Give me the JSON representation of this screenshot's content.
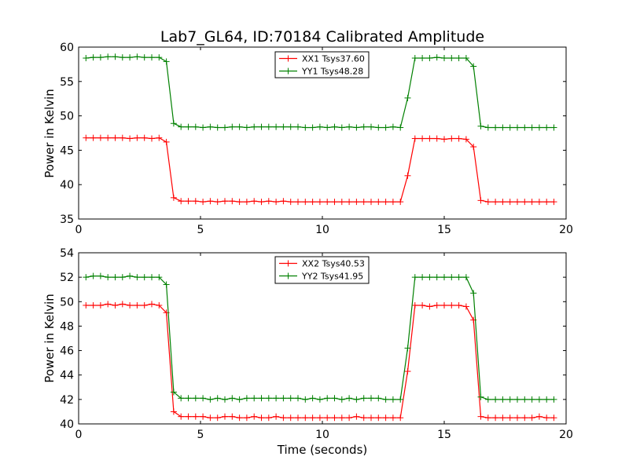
{
  "title": "Lab7_GL64, ID:70184 Calibrated Amplitude",
  "xlabel": "Time (seconds)",
  "colors": {
    "red": "#ff0000",
    "green": "#008000"
  },
  "chart_data": [
    {
      "type": "line",
      "ylabel": "Power in Kelvin",
      "xlim": [
        0,
        20
      ],
      "ylim": [
        35,
        60
      ],
      "xticks": [
        "0",
        "5",
        "10",
        "15",
        "20"
      ],
      "yticks": [
        "35",
        "40",
        "45",
        "50",
        "55",
        "60"
      ],
      "xtick_values": [
        0,
        5,
        10,
        15,
        20
      ],
      "ytick_values": [
        35,
        40,
        45,
        50,
        55,
        60
      ],
      "x": [
        0.3,
        0.6,
        0.9,
        1.2,
        1.5,
        1.8,
        2.1,
        2.4,
        2.7,
        3.0,
        3.3,
        3.6,
        3.9,
        4.2,
        4.5,
        4.8,
        5.1,
        5.4,
        5.7,
        6.0,
        6.3,
        6.6,
        6.9,
        7.2,
        7.5,
        7.8,
        8.1,
        8.4,
        8.7,
        9.0,
        9.3,
        9.6,
        9.9,
        10.2,
        10.5,
        10.8,
        11.1,
        11.4,
        11.7,
        12.0,
        12.3,
        12.6,
        12.9,
        13.2,
        13.5,
        13.8,
        14.1,
        14.4,
        14.7,
        15.0,
        15.3,
        15.6,
        15.9,
        16.2,
        16.5,
        16.8,
        17.1,
        17.4,
        17.7,
        18.0,
        18.3,
        18.6,
        18.9,
        19.2,
        19.5
      ],
      "series": [
        {
          "name": "XX1 Tsys37.60",
          "color": "#ff0000",
          "values": [
            46.8,
            46.8,
            46.8,
            46.8,
            46.8,
            46.8,
            46.7,
            46.8,
            46.8,
            46.7,
            46.8,
            46.2,
            38.1,
            37.6,
            37.6,
            37.6,
            37.5,
            37.6,
            37.5,
            37.6,
            37.6,
            37.5,
            37.5,
            37.6,
            37.5,
            37.6,
            37.5,
            37.6,
            37.5,
            37.5,
            37.5,
            37.5,
            37.5,
            37.5,
            37.5,
            37.5,
            37.5,
            37.5,
            37.5,
            37.5,
            37.5,
            37.5,
            37.5,
            37.5,
            41.3,
            46.7,
            46.7,
            46.7,
            46.7,
            46.6,
            46.7,
            46.7,
            46.6,
            45.5,
            37.7,
            37.5,
            37.5,
            37.5,
            37.5,
            37.5,
            37.5,
            37.5,
            37.5,
            37.5,
            37.5
          ]
        },
        {
          "name": "YY1 Tsys48.28",
          "color": "#008000",
          "values": [
            58.4,
            58.5,
            58.5,
            58.6,
            58.6,
            58.5,
            58.5,
            58.6,
            58.5,
            58.5,
            58.5,
            57.9,
            48.9,
            48.4,
            48.4,
            48.4,
            48.3,
            48.4,
            48.3,
            48.3,
            48.4,
            48.4,
            48.3,
            48.4,
            48.4,
            48.4,
            48.4,
            48.4,
            48.4,
            48.4,
            48.3,
            48.3,
            48.4,
            48.3,
            48.4,
            48.3,
            48.4,
            48.3,
            48.4,
            48.4,
            48.3,
            48.3,
            48.4,
            48.3,
            52.6,
            58.4,
            58.4,
            58.4,
            58.5,
            58.4,
            58.4,
            58.4,
            58.4,
            57.2,
            48.5,
            48.3,
            48.3,
            48.3,
            48.3,
            48.3,
            48.3,
            48.3,
            48.3,
            48.3,
            48.3
          ]
        }
      ]
    },
    {
      "type": "line",
      "ylabel": "Power in Kelvin",
      "xlim": [
        0,
        20
      ],
      "ylim": [
        40,
        54
      ],
      "xticks": [
        "0",
        "5",
        "10",
        "15",
        "20"
      ],
      "yticks": [
        "40",
        "42",
        "44",
        "46",
        "48",
        "50",
        "52",
        "54"
      ],
      "xtick_values": [
        0,
        5,
        10,
        15,
        20
      ],
      "ytick_values": [
        40,
        42,
        44,
        46,
        48,
        50,
        52,
        54
      ],
      "x": [
        0.3,
        0.6,
        0.9,
        1.2,
        1.5,
        1.8,
        2.1,
        2.4,
        2.7,
        3.0,
        3.3,
        3.6,
        3.9,
        4.2,
        4.5,
        4.8,
        5.1,
        5.4,
        5.7,
        6.0,
        6.3,
        6.6,
        6.9,
        7.2,
        7.5,
        7.8,
        8.1,
        8.4,
        8.7,
        9.0,
        9.3,
        9.6,
        9.9,
        10.2,
        10.5,
        10.8,
        11.1,
        11.4,
        11.7,
        12.0,
        12.3,
        12.6,
        12.9,
        13.2,
        13.5,
        13.8,
        14.1,
        14.4,
        14.7,
        15.0,
        15.3,
        15.6,
        15.9,
        16.2,
        16.5,
        16.8,
        17.1,
        17.4,
        17.7,
        18.0,
        18.3,
        18.6,
        18.9,
        19.2,
        19.5
      ],
      "series": [
        {
          "name": "XX2 Tsys40.53",
          "color": "#ff0000",
          "values": [
            49.7,
            49.7,
            49.7,
            49.8,
            49.7,
            49.8,
            49.7,
            49.7,
            49.7,
            49.8,
            49.7,
            49.1,
            41.0,
            40.6,
            40.6,
            40.6,
            40.6,
            40.5,
            40.5,
            40.6,
            40.6,
            40.5,
            40.5,
            40.6,
            40.5,
            40.5,
            40.6,
            40.5,
            40.5,
            40.5,
            40.5,
            40.5,
            40.5,
            40.5,
            40.5,
            40.5,
            40.5,
            40.6,
            40.5,
            40.5,
            40.5,
            40.5,
            40.5,
            40.5,
            44.3,
            49.7,
            49.7,
            49.6,
            49.7,
            49.7,
            49.7,
            49.7,
            49.6,
            48.5,
            40.6,
            40.5,
            40.5,
            40.5,
            40.5,
            40.5,
            40.5,
            40.5,
            40.6,
            40.5,
            40.5
          ]
        },
        {
          "name": "YY2 Tsys41.95",
          "color": "#008000",
          "values": [
            52.0,
            52.1,
            52.1,
            52.0,
            52.0,
            52.0,
            52.1,
            52.0,
            52.0,
            52.0,
            52.0,
            51.4,
            42.6,
            42.1,
            42.1,
            42.1,
            42.1,
            42.0,
            42.1,
            42.0,
            42.1,
            42.0,
            42.1,
            42.1,
            42.1,
            42.1,
            42.1,
            42.1,
            42.1,
            42.1,
            42.0,
            42.1,
            42.0,
            42.1,
            42.1,
            42.0,
            42.1,
            42.0,
            42.1,
            42.1,
            42.1,
            42.0,
            42.0,
            42.0,
            46.2,
            52.0,
            52.0,
            52.0,
            52.0,
            52.0,
            52.0,
            52.0,
            52.0,
            50.7,
            42.2,
            42.0,
            42.0,
            42.0,
            42.0,
            42.0,
            42.0,
            42.0,
            42.0,
            42.0,
            42.0
          ]
        }
      ]
    }
  ]
}
